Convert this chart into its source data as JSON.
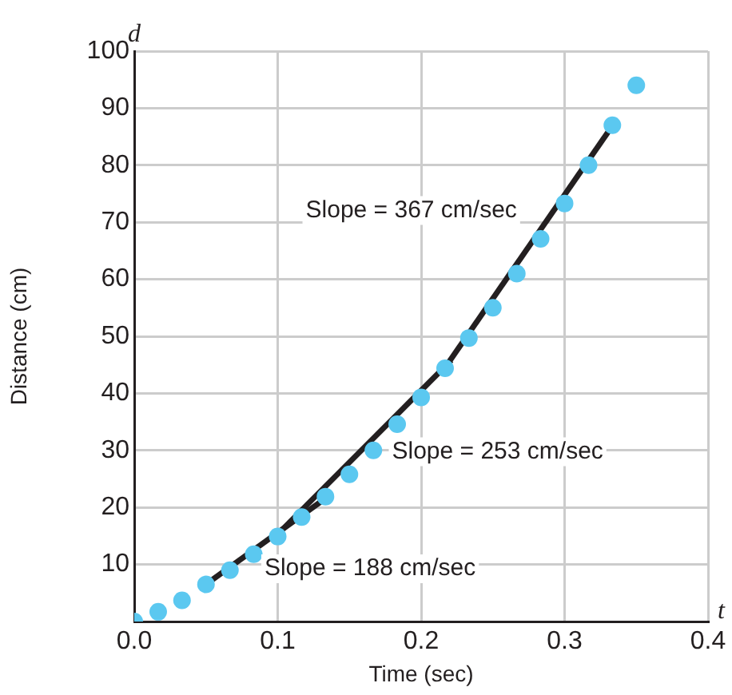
{
  "chart_data": {
    "type": "scatter",
    "xlabel": "Time (sec)",
    "ylabel": "Distance (cm)",
    "x": [
      0,
      0.0167,
      0.0333,
      0.05,
      0.0667,
      0.0833,
      0.1,
      0.1167,
      0.1333,
      0.15,
      0.1667,
      0.1833,
      0.2,
      0.2167,
      0.2333,
      0.25,
      0.2667,
      0.2833,
      0.3,
      0.3167,
      0.3333,
      0.35
    ],
    "series": [
      {
        "color": "#5bc8f0",
        "marker": "circle",
        "values": [
          0,
          1.7,
          3.7,
          6.5,
          9,
          11.8,
          14.9,
          18.3,
          21.9,
          25.8,
          30,
          34.6,
          39.3,
          44.4,
          49.7,
          55,
          61,
          67.1,
          73.3,
          80,
          87,
          94
        ]
      },
      {
        "type": "line",
        "name": "Slope = 188 cm/sec",
        "color": "#231f20",
        "marker": "none",
        "x": [
          0.051,
          0.135
        ],
        "values": [
          6.7,
          21.9
        ]
      },
      {
        "type": "line",
        "name": "Slope = 253 cm/sec",
        "color": "#231f20",
        "marker": "none",
        "x": [
          0.096,
          0.221
        ],
        "values": [
          14.3,
          45.8
        ]
      },
      {
        "type": "line",
        "name": "Slope = 367 cm/sec",
        "color": "#231f20",
        "marker": "none",
        "x": [
          0.218,
          0.333
        ],
        "values": [
          45,
          86.8
        ]
      }
    ],
    "xlim": [
      0,
      0.4
    ],
    "xticks": [
      {
        "value": 0,
        "label": "0.0"
      },
      0.1,
      0.2,
      0.3,
      0.4
    ],
    "ylim": [
      0,
      100
    ],
    "yticks": [
      {
        "value": 0,
        "label": null
      },
      10,
      20,
      30,
      40,
      50,
      60,
      70,
      80,
      90,
      100
    ],
    "grid": true,
    "legend": false,
    "annotations": [
      "d",
      "t"
    ]
  }
}
